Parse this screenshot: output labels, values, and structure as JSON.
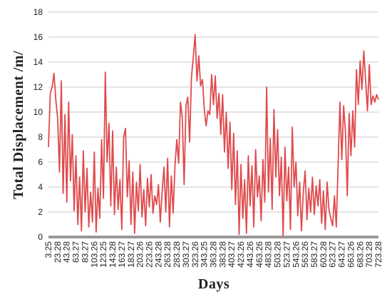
{
  "chart_data": {
    "type": "line",
    "x_label": "Days",
    "y_label": "Total Displacement /m/",
    "categories": [
      "3.25",
      null,
      null,
      null,
      null,
      "23.28",
      null,
      null,
      null,
      null,
      "43.28",
      null,
      null,
      null,
      null,
      "63.27",
      null,
      null,
      null,
      null,
      "83.27",
      null,
      null,
      null,
      null,
      "103.26",
      null,
      null,
      null,
      null,
      "123.25",
      null,
      null,
      null,
      null,
      "143.28",
      null,
      null,
      null,
      null,
      "163.27",
      null,
      null,
      null,
      null,
      "183.27",
      null,
      null,
      null,
      null,
      "203.26",
      null,
      null,
      null,
      null,
      "223.26",
      null,
      null,
      null,
      null,
      "243.28",
      null,
      null,
      null,
      null,
      "263.28",
      null,
      null,
      null,
      null,
      "283.28",
      null,
      null,
      null,
      null,
      "303.27",
      null,
      null,
      null,
      null,
      "323.26",
      null,
      null,
      null,
      null,
      "343.25",
      null,
      null,
      null,
      null,
      "363.28",
      null,
      null,
      null,
      null,
      "383.28",
      null,
      null,
      null,
      null,
      "403.27",
      null,
      null,
      null,
      null,
      "423.26",
      null,
      null,
      null,
      null,
      "443.26",
      null,
      null,
      null,
      null,
      "463.26",
      null,
      null,
      null,
      null,
      "483.28",
      null,
      null,
      null,
      null,
      "503.28",
      null,
      null,
      null,
      null,
      "523.27",
      null,
      null,
      null,
      null,
      "543.26",
      null,
      null,
      null,
      null,
      "563.26",
      null,
      null,
      null,
      null,
      "583.27",
      null,
      null,
      null,
      null,
      "603.28",
      null,
      null,
      null,
      null,
      "623.27",
      null,
      null,
      null,
      null,
      "643.27",
      null,
      null,
      null,
      null,
      "663.26",
      null,
      null,
      null,
      null,
      "683.26",
      null,
      null,
      null,
      null,
      "703.28",
      null,
      null,
      null,
      null,
      "723.28"
    ],
    "values": [
      7.2,
      11.5,
      12.0,
      13.1,
      11.0,
      9.5,
      5.2,
      12.5,
      3.5,
      9.8,
      2.8,
      10.8,
      4.5,
      8.2,
      2.1,
      6.5,
      1.0,
      4.8,
      0.5,
      6.9,
      2.0,
      5.5,
      0.8,
      3.6,
      1.2,
      6.8,
      0.4,
      3.9,
      1.5,
      7.8,
      3.1,
      13.2,
      6.0,
      9.1,
      2.5,
      8.5,
      1.8,
      5.6,
      2.2,
      4.6,
      0.6,
      8.0,
      8.7,
      3.2,
      6.1,
      1.0,
      5.2,
      0.3,
      4.4,
      2.1,
      5.8,
      1.6,
      3.8,
      0.9,
      4.7,
      2.4,
      5.0,
      1.9,
      3.3,
      2.6,
      4.2,
      1.2,
      3.6,
      5.6,
      2.0,
      6.3,
      0.8,
      4.9,
      1.9,
      5.7,
      7.8,
      5.9,
      10.8,
      9.6,
      4.2,
      10.5,
      11.2,
      7.6,
      12.8,
      14.4,
      16.2,
      12.5,
      14.5,
      12.1,
      12.6,
      10.2,
      8.9,
      10.1,
      9.8,
      13.0,
      10.6,
      12.9,
      9.5,
      11.5,
      8.2,
      11.4,
      6.8,
      10.0,
      5.5,
      9.2,
      3.8,
      8.3,
      2.6,
      6.9,
      0.2,
      5.8,
      1.5,
      4.6,
      0.3,
      6.5,
      2.5,
      5.7,
      0.8,
      7.0,
      3.2,
      4.9,
      1.3,
      6.2,
      2.8,
      12.0,
      3.6,
      7.9,
      2.2,
      10.2,
      4.8,
      8.6,
      3.3,
      6.4,
      0.1,
      7.2,
      2.9,
      5.6,
      0.6,
      8.8,
      4.0,
      6.0,
      1.7,
      4.4,
      0.5,
      3.6,
      5.3,
      1.4,
      3.9,
      2.0,
      4.8,
      1.8,
      4.1,
      2.5,
      4.6,
      1.1,
      3.7,
      0.6,
      4.4,
      2.2,
      1.5,
      0.9,
      3.3,
      0.8,
      5.8,
      10.8,
      6.2,
      10.5,
      8.4,
      3.3,
      9.9,
      6.5,
      10.1,
      7.2,
      13.4,
      10.6,
      14.1,
      11.8,
      14.9,
      12.5,
      10.1,
      13.8,
      10.6,
      11.3,
      10.8,
      11.4,
      11.0
    ],
    "color": "#e04a4c",
    "ylim": [
      0,
      18
    ],
    "yticks": [
      0,
      2,
      4,
      6,
      8,
      10,
      12,
      14,
      16,
      18
    ],
    "grid": true
  }
}
